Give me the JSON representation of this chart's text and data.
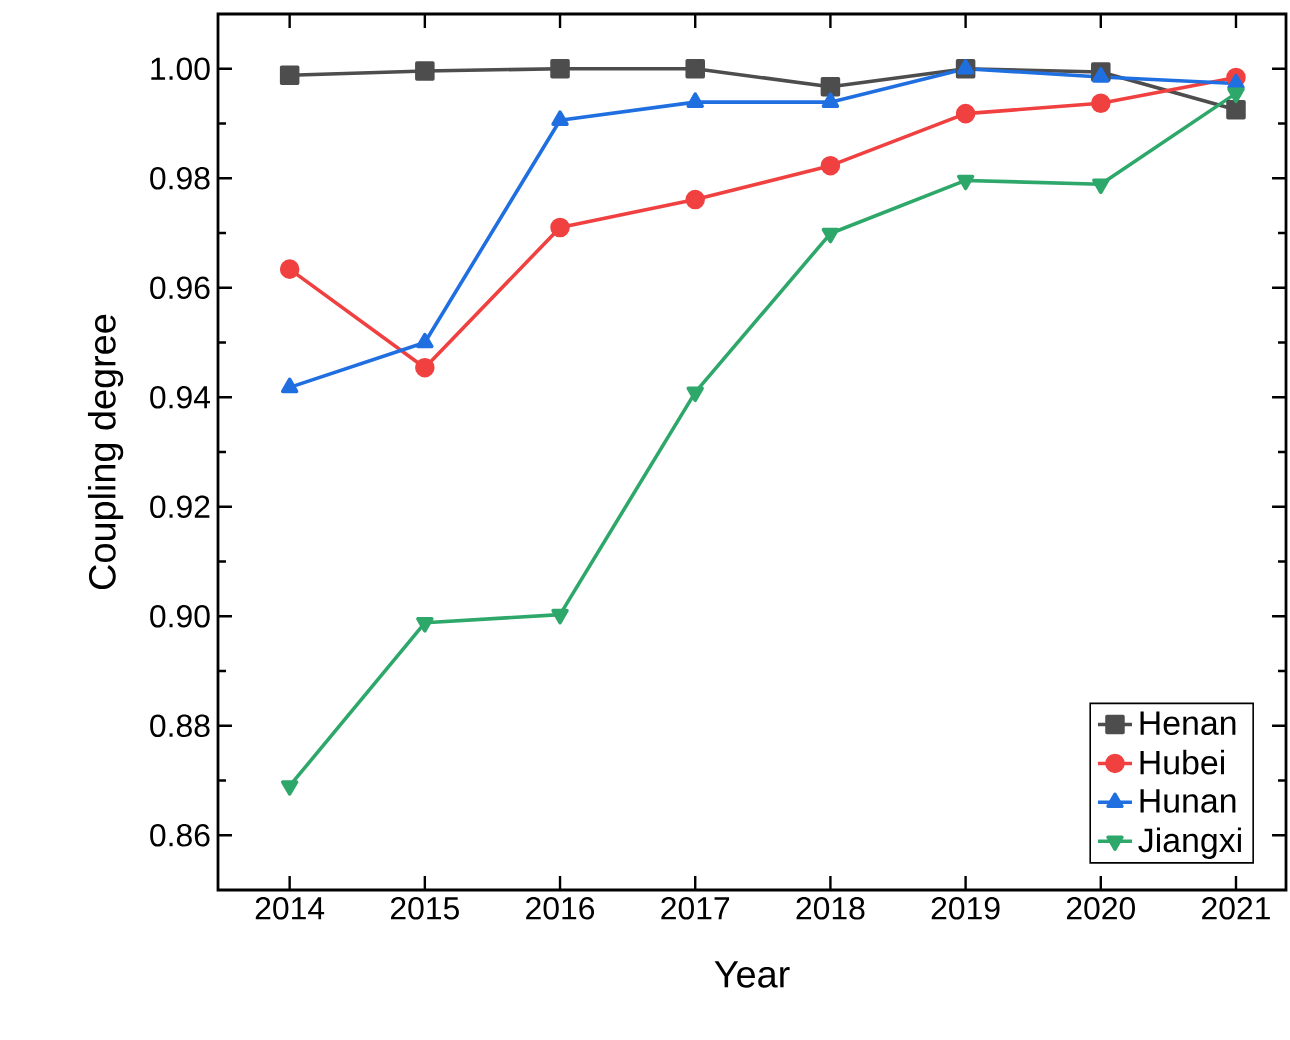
{
  "chart_data": {
    "type": "line",
    "xlabel": "Year",
    "ylabel": "Coupling degree",
    "x": [
      2014,
      2015,
      2016,
      2017,
      2018,
      2019,
      2020,
      2021
    ],
    "xlim": [
      2013.47,
      2021.37
    ],
    "xticks": [
      2014,
      2015,
      2016,
      2017,
      2018,
      2019,
      2020,
      2021
    ],
    "ylim": [
      0.85,
      1.01
    ],
    "yticks": [
      {
        "value": 0.86,
        "label": "0.86"
      },
      {
        "value": 0.88,
        "label": "0.88"
      },
      {
        "value": 0.9,
        "label": "0.90"
      },
      {
        "value": 0.92,
        "label": "0.92"
      },
      {
        "value": 0.94,
        "label": "0.94"
      },
      {
        "value": 0.96,
        "label": "0.96"
      },
      {
        "value": 0.98,
        "label": "0.98"
      },
      {
        "value": 1.0,
        "label": "1.00"
      }
    ],
    "grid": false,
    "legend": "bottom right",
    "line_style": "solid",
    "series": [
      {
        "name": "Henan",
        "color": "#4d4d4d",
        "marker": "square",
        "values": [
          0.9988,
          0.9996,
          1.0,
          1.0,
          0.9967,
          1.0,
          0.9994,
          0.9925
        ]
      },
      {
        "name": "Hubei",
        "color": "#f04040",
        "marker": "circle",
        "values": [
          0.9634,
          0.9454,
          0.971,
          0.9761,
          0.9823,
          0.9918,
          0.9937,
          0.9984
        ]
      },
      {
        "name": "Hunan",
        "color": "#1f6fe0",
        "marker": "triangle",
        "values": [
          0.9418,
          0.95,
          0.9906,
          0.9939,
          0.9939,
          1.0,
          0.9985,
          0.9973
        ]
      },
      {
        "name": "Jiangxi",
        "color": "#2ea86a",
        "marker": "triangle down",
        "values": [
          0.869,
          0.8988,
          0.9003,
          0.9409,
          0.9699,
          0.9796,
          0.9789,
          0.9955
        ]
      }
    ]
  }
}
